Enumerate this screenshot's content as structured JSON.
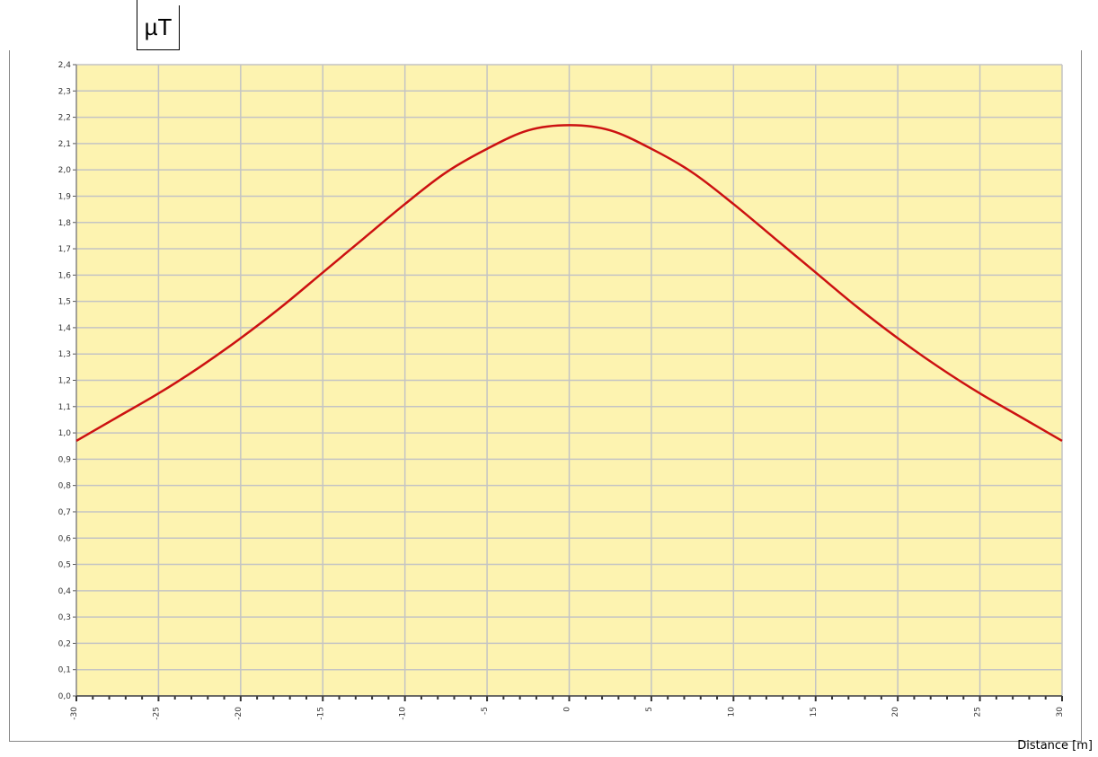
{
  "unit_label": "µT",
  "chart_data": {
    "type": "line",
    "title": "",
    "xlabel": "Distance [m]",
    "ylabel": "µT",
    "x_ticks": [
      "-30",
      "-25",
      "-20",
      "-15",
      "-10",
      "-5",
      "0",
      "5",
      "10",
      "15",
      "20",
      "25",
      "30"
    ],
    "y_ticks": [
      "0,0",
      "0,1",
      "0,2",
      "0,3",
      "0,4",
      "0,5",
      "0,6",
      "0,7",
      "0,8",
      "0,9",
      "1,0",
      "1,1",
      "1,2",
      "1,3",
      "1,4",
      "1,5",
      "1,6",
      "1,7",
      "1,8",
      "1,9",
      "2,0",
      "2,1",
      "2,2",
      "2,3",
      "2,4"
    ],
    "xlim": [
      -30,
      30
    ],
    "ylim": [
      0,
      2.4
    ],
    "grid": true,
    "background_color": "#fdf3b0",
    "series": [
      {
        "color": "#cc1111",
        "x": [
          -30,
          -27.5,
          -25,
          -22.5,
          -20,
          -17.5,
          -15,
          -12.5,
          -10,
          -7.5,
          -5,
          -2.5,
          0,
          2.5,
          5,
          7.5,
          10,
          12.5,
          15,
          17.5,
          20,
          22.5,
          25,
          27.5,
          30
        ],
        "values": [
          0.97,
          1.06,
          1.15,
          1.25,
          1.36,
          1.48,
          1.61,
          1.74,
          1.87,
          1.99,
          2.08,
          2.15,
          2.17,
          2.15,
          2.08,
          1.99,
          1.87,
          1.74,
          1.61,
          1.48,
          1.36,
          1.25,
          1.15,
          1.06,
          0.97
        ]
      }
    ]
  }
}
